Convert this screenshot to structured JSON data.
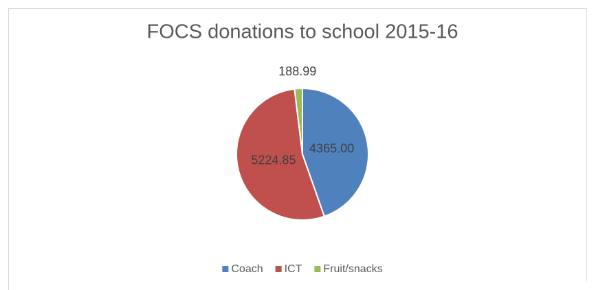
{
  "chart_data": {
    "type": "pie",
    "title": "FOCS donations to school 2015-16",
    "categories": [
      "Coach",
      "ICT",
      "Fruit/snacks"
    ],
    "values": [
      4365,
      5224.85,
      188.99
    ],
    "value_labels": [
      "4365.00",
      "5224.85",
      "188.99"
    ],
    "colors": [
      "#4f81bd",
      "#c0504d",
      "#9bbb59"
    ],
    "legend": "bottom"
  }
}
